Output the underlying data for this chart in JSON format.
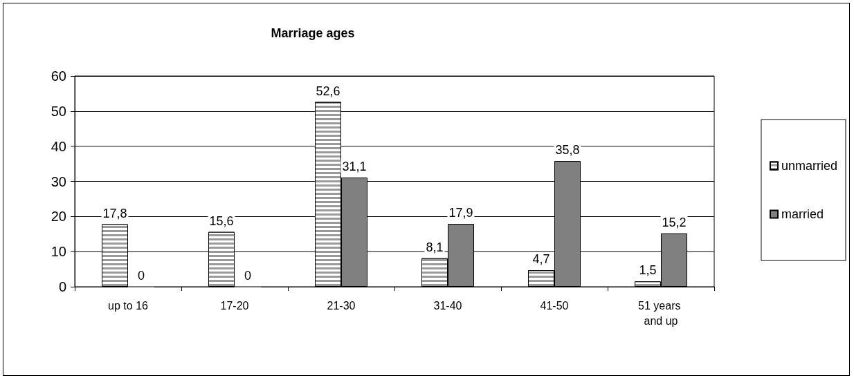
{
  "chart_data": {
    "type": "bar",
    "title": "Marriage ages",
    "categories": [
      "up to 16",
      "17-20",
      "21-30",
      "31-40",
      "41-50",
      "51 years and up"
    ],
    "series": [
      {
        "name": "unmarried",
        "color": "#9a9a9a",
        "values": [
          17.8,
          15.6,
          52.6,
          8.1,
          4.7,
          1.5
        ],
        "value_labels": [
          "17,8",
          "15,6",
          "52,6",
          "8,1",
          "4,7",
          "1,5"
        ]
      },
      {
        "name": "married",
        "color": "#808080",
        "values": [
          0,
          0,
          31.1,
          17.9,
          35.8,
          15.2
        ],
        "value_labels": [
          "0",
          "0",
          "31,1",
          "17,9",
          "35,8",
          "15,2"
        ]
      }
    ],
    "ylim": [
      0,
      60
    ],
    "yticks": [
      0,
      10,
      20,
      30,
      40,
      50,
      60
    ],
    "grid": "y",
    "legend": "right"
  }
}
